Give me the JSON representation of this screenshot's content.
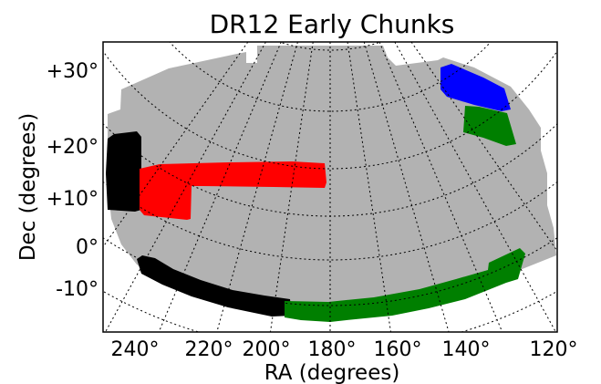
{
  "chart_data": {
    "type": "scatter",
    "title": "DR12 Early Chunks",
    "xlabel": "RA (degrees)",
    "ylabel": "Dec (degrees)",
    "xlim": [
      240,
      120
    ],
    "ylim": [
      -20,
      35
    ],
    "x_ticks": [
      {
        "value": 240,
        "label": "240°"
      },
      {
        "value": 220,
        "label": "220°"
      },
      {
        "value": 200,
        "label": "200°"
      },
      {
        "value": 180,
        "label": "180°"
      },
      {
        "value": 160,
        "label": "160°"
      },
      {
        "value": 140,
        "label": "140°"
      },
      {
        "value": 120,
        "label": "120°"
      }
    ],
    "y_ticks": [
      {
        "value": 30,
        "label": "+30°"
      },
      {
        "value": 20,
        "label": "+20°"
      },
      {
        "value": 10,
        "label": "+10°"
      },
      {
        "value": 0,
        "label": "0°"
      },
      {
        "value": -10,
        "label": "-10°"
      }
    ],
    "grid": true,
    "colors": {
      "footprint": "#b2b2b2",
      "black": "#000000",
      "red": "#ff0000",
      "blue": "#0000ff",
      "green": "#007f00"
    },
    "series": [
      {
        "color": "black",
        "ra_range": [
          234,
          241
        ],
        "dec_range": [
          8,
          22
        ]
      },
      {
        "color": "red",
        "ra_range": [
          185,
          228
        ],
        "dec_range": [
          8,
          17
        ]
      },
      {
        "color": "blue",
        "ra_range": [
          140,
          153
        ],
        "dec_range": [
          23,
          32
        ]
      },
      {
        "color": "green",
        "ra_range": [
          136,
          148
        ],
        "dec_range": [
          14,
          22
        ]
      },
      {
        "color": "black",
        "ra_range": [
          197,
          236
        ],
        "dec_range": [
          -15,
          -7
        ]
      },
      {
        "color": "green",
        "ra_range": [
          128,
          197
        ],
        "dec_range": [
          -16,
          -3
        ]
      }
    ]
  }
}
